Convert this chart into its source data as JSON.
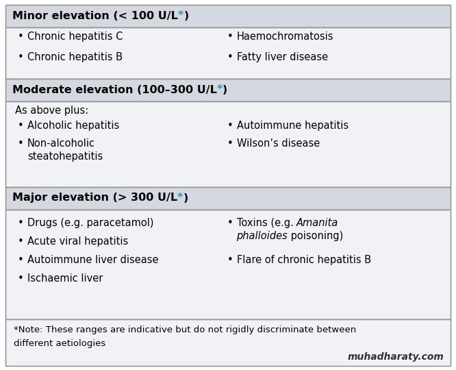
{
  "bg_color": "#ffffff",
  "header_bg": "#d4d8e0",
  "body_bg": "#f0f2f5",
  "border_color": "#999999",
  "text_color": "#000000",
  "cyan_color": "#2299bb",
  "watermark_color": "#333333",
  "figsize": [
    6.66,
    5.4
  ],
  "dpi": 100,
  "footnote": "*Note: These ranges are indicative but do not rigidly discriminate between different aetiologies",
  "watermark": "muhadharaty.com",
  "header1": "Minor elevation (< 100 U/L",
  "header2": "Moderate elevation (100–300 U/L",
  "header3": "Major elevation (> 300 U/L",
  "header_suffix": "*)",
  "s1_left": [
    "Chronic hepatitis C",
    "Chronic hepatitis B"
  ],
  "s1_right": [
    "Haemochromatosis",
    "Fatty liver disease"
  ],
  "s2_intro": "As above plus:",
  "s2_left": [
    "Alcoholic hepatitis",
    "Non-alcoholic\nsteatohepatitis"
  ],
  "s2_right": [
    "Autoimmune hepatitis",
    "Wilson’s disease"
  ],
  "s3_left": [
    "Drugs (e.g. paracetamol)",
    "Acute viral hepatitis",
    "Autoimmune liver disease",
    "Ischaemic liver"
  ],
  "s3_right_line1_normal1": "Toxins (e.g. ",
  "s3_right_line1_italic": "Amanita",
  "s3_right_line2_italic": "phalloides",
  "s3_right_line2_normal": " poisoning)",
  "s3_right_item2": "Flare of chronic hepatitis B",
  "font_size_header": 11.5,
  "font_size_body": 10.5,
  "font_size_footnote": 9.5,
  "font_size_watermark": 10.0
}
